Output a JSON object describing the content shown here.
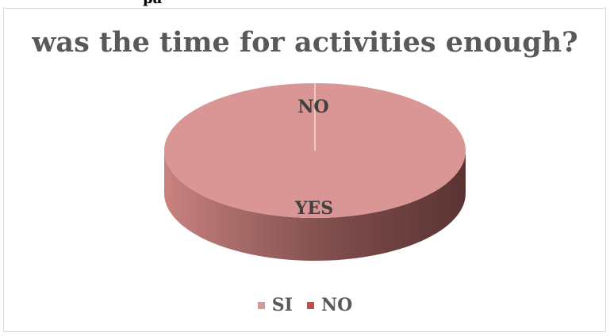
{
  "top_caption": "pa",
  "chart_data": {
    "type": "pie",
    "title": "was the time for activities enough?",
    "categories": [
      "SI",
      "NO"
    ],
    "values": [
      100,
      0
    ],
    "data_labels": [
      "YES",
      "NO"
    ],
    "legend_position": "bottom",
    "colors": {
      "SI": "#d99694",
      "NO": "#c0504d"
    },
    "style": "3d"
  }
}
